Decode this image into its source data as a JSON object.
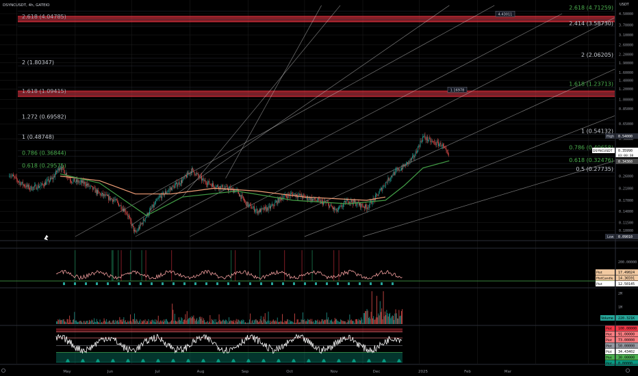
{
  "header": {
    "symbol_line": "DSYNCUSDT, 4h, GATEIO"
  },
  "price_axis": {
    "unit_label": "USDT",
    "ticks": [
      {
        "label": "4.50000",
        "v": 4.5
      },
      {
        "label": "3.70000",
        "v": 3.7
      },
      {
        "label": "3.10000",
        "v": 3.1
      },
      {
        "label": "2.60000",
        "v": 2.6
      },
      {
        "label": "2.20000",
        "v": 2.2
      },
      {
        "label": "1.90000",
        "v": 1.9
      },
      {
        "label": "1.60000",
        "v": 1.6
      },
      {
        "label": "1.40000",
        "v": 1.4
      },
      {
        "label": "1.20000",
        "v": 1.2
      },
      {
        "label": "1.00000",
        "v": 1.0
      },
      {
        "label": "0.85000",
        "v": 0.85
      },
      {
        "label": "0.65000",
        "v": 0.65
      },
      {
        "label": "0.50000",
        "v": 0.5
      },
      {
        "label": "0.26000",
        "v": 0.26
      },
      {
        "label": "0.21000",
        "v": 0.21
      },
      {
        "label": "0.17000",
        "v": 0.17
      },
      {
        "label": "0.14000",
        "v": 0.14
      },
      {
        "label": "0.11500",
        "v": 0.115
      },
      {
        "label": "0.10000",
        "v": 0.1
      }
    ],
    "high_label": "High",
    "high_value": "0.54000",
    "low_label": "Low",
    "low_value": "0.09010",
    "symbol_tag": "DSYNCUSDT",
    "last_price": "0.35990",
    "countdown": "03:00:38",
    "ma_value": "0.34360"
  },
  "fib_left": [
    {
      "text": "2.618 (4.04785)",
      "v": 4.04785,
      "color": "#a5a9b3"
    },
    {
      "text": "2 (1.80347)",
      "v": 1.80347,
      "color": "#c8ccd4"
    },
    {
      "text": "1.618 (1.09415)",
      "v": 1.09415,
      "color": "#a5a9b3"
    },
    {
      "text": "1.272 (0.69582)",
      "v": 0.69582,
      "color": "#c8ccd4"
    },
    {
      "text": "1 (0.48748)",
      "v": 0.48748,
      "color": "#c8ccd4"
    },
    {
      "text": "0.786 (0.36844)",
      "v": 0.36844,
      "color": "#4caf50"
    },
    {
      "text": "0.618 (0.29575)",
      "v": 0.29575,
      "color": "#4caf50"
    }
  ],
  "fib_right": [
    {
      "text": "2.618 (4.71259)",
      "v": 4.71259,
      "color": "#4caf50"
    },
    {
      "text": "2.414 (3.58730)",
      "v": 3.5873,
      "color": "#c8ccd4"
    },
    {
      "text": "2 (2.06205)",
      "v": 2.06205,
      "color": "#c8ccd4"
    },
    {
      "text": "1.618 (1.23713)",
      "v": 1.23713,
      "color": "#4caf50"
    },
    {
      "text": "1 (0.54132)",
      "v": 0.54132,
      "color": "#c8ccd4"
    },
    {
      "text": "0.786 (0.40658)",
      "v": 0.40658,
      "color": "#4caf50"
    },
    {
      "text": "0.618 (0.32476)",
      "v": 0.32476,
      "color": "#4caf50"
    },
    {
      "text": "0.5 (0.27735)",
      "v": 0.27735,
      "color": "#c8ccd4"
    }
  ],
  "zones": [
    {
      "from": 3.9,
      "to": 4.3
    },
    {
      "from": 1.05,
      "to": 1.16
    }
  ],
  "callouts": [
    {
      "text": "4.43011",
      "v": 4.43011
    },
    {
      "text": "1.16978",
      "v": 1.16978
    }
  ],
  "osc_axis": {
    "tick": "200.00000"
  },
  "osc_labels": [
    {
      "text": "17.49024",
      "color": "#f0c8a0",
      "prefix": "Plot"
    },
    {
      "text": "14.36591",
      "color": "#f0c8a0",
      "prefix": "PlotCandle"
    },
    {
      "text": "12.50145",
      "color": "#ffffff",
      "prefix": "Plot"
    }
  ],
  "volume_axis": {
    "ticks": [
      "2M",
      "1M"
    ],
    "label": "Volume",
    "value": "220.321K"
  },
  "rsi_labels": [
    {
      "prefix": "Plot",
      "text": "100.00000",
      "color": "#f23645"
    },
    {
      "prefix": "Plot",
      "text": "91.00000",
      "color": "#f77c80"
    },
    {
      "prefix": "Plot",
      "text": "73.00000",
      "color": "#f77c80"
    },
    {
      "prefix": "Plot",
      "text": "50.00000",
      "color": "#9598a1"
    },
    {
      "prefix": "Plot",
      "text": "34.43402",
      "color": "#ffffff"
    },
    {
      "prefix": "Plot",
      "text": "30.00000",
      "color": "#4caf50"
    },
    {
      "prefix": "Plot",
      "text": "0.00000",
      "color": "#089981"
    }
  ],
  "time_axis": [
    "May",
    "Jun",
    "Jul",
    "Aug",
    "Sep",
    "Oct",
    "Nov",
    "Dec",
    "2025",
    "Feb",
    "Mar"
  ],
  "colors": {
    "up": "#26a69a",
    "down": "#ef5350",
    "ema_fast": "#f6a27a",
    "ema_slow": "#43a047",
    "channel": "#d9d9d9",
    "zone": "#f23645",
    "grid": "#1b1b1b"
  },
  "chart_data": {
    "type": "candlestick",
    "symbol": "DSYNCUSDT",
    "timeframe": "4h",
    "exchange": "GATEIO",
    "y_scale": "log",
    "ylim": [
      0.085,
      5.2
    ],
    "x_range": [
      "2024-04-22",
      "2025-03-15"
    ],
    "close_path": [
      [
        "2024-04-27",
        0.27
      ],
      [
        "2024-05-03",
        0.23
      ],
      [
        "2024-05-08",
        0.21
      ],
      [
        "2024-05-14",
        0.22
      ],
      [
        "2024-05-20",
        0.25
      ],
      [
        "2024-05-24",
        0.31
      ],
      [
        "2024-05-30",
        0.24
      ],
      [
        "2024-06-06",
        0.23
      ],
      [
        "2024-06-14",
        0.19
      ],
      [
        "2024-06-22",
        0.17
      ],
      [
        "2024-06-28",
        0.14
      ],
      [
        "2024-07-03",
        0.095
      ],
      [
        "2024-07-09",
        0.13
      ],
      [
        "2024-07-16",
        0.18
      ],
      [
        "2024-07-22",
        0.21
      ],
      [
        "2024-07-28",
        0.24
      ],
      [
        "2024-08-02",
        0.29
      ],
      [
        "2024-08-08",
        0.24
      ],
      [
        "2024-08-14",
        0.22
      ],
      [
        "2024-08-20",
        0.21
      ],
      [
        "2024-08-26",
        0.2
      ],
      [
        "2024-08-31",
        0.16
      ],
      [
        "2024-09-06",
        0.14
      ],
      [
        "2024-09-13",
        0.15
      ],
      [
        "2024-09-19",
        0.18
      ],
      [
        "2024-09-25",
        0.19
      ],
      [
        "2024-10-01",
        0.18
      ],
      [
        "2024-10-07",
        0.17
      ],
      [
        "2024-10-13",
        0.16
      ],
      [
        "2024-10-18",
        0.14
      ],
      [
        "2024-10-24",
        0.17
      ],
      [
        "2024-10-29",
        0.16
      ],
      [
        "2024-11-03",
        0.15
      ],
      [
        "2024-11-08",
        0.18
      ],
      [
        "2024-11-13",
        0.23
      ],
      [
        "2024-11-17",
        0.27
      ],
      [
        "2024-11-23",
        0.31
      ],
      [
        "2024-11-28",
        0.36
      ],
      [
        "2024-12-03",
        0.52
      ],
      [
        "2024-12-08",
        0.47
      ],
      [
        "2024-12-13",
        0.45
      ],
      [
        "2024-12-17",
        0.36
      ]
    ],
    "ema_fast": [
      [
        "2024-05-24",
        0.26
      ],
      [
        "2024-06-14",
        0.24
      ],
      [
        "2024-07-03",
        0.19
      ],
      [
        "2024-07-22",
        0.19
      ],
      [
        "2024-08-14",
        0.21
      ],
      [
        "2024-09-06",
        0.2
      ],
      [
        "2024-10-01",
        0.18
      ],
      [
        "2024-11-03",
        0.17
      ],
      [
        "2024-11-13",
        0.18
      ]
    ],
    "ema_slow": [
      [
        "2024-05-24",
        0.27
      ],
      [
        "2024-06-14",
        0.23
      ],
      [
        "2024-07-09",
        0.13
      ],
      [
        "2024-07-28",
        0.18
      ],
      [
        "2024-08-26",
        0.2
      ],
      [
        "2024-09-25",
        0.17
      ],
      [
        "2024-10-24",
        0.16
      ],
      [
        "2024-11-13",
        0.17
      ],
      [
        "2024-11-23",
        0.22
      ],
      [
        "2024-12-03",
        0.3
      ],
      [
        "2024-12-17",
        0.34
      ]
    ],
    "channel_lines": [
      {
        "start": [
          "2024-07-03",
          0.09
        ],
        "end": [
          "2025-02-15",
          4.5
        ]
      },
      {
        "start": [
          "2024-08-01",
          0.09
        ],
        "end": [
          "2025-03-15",
          4.2
        ]
      },
      {
        "start": [
          "2024-09-01",
          0.09
        ],
        "end": [
          "2025-03-15",
          1.7
        ]
      },
      {
        "start": [
          "2024-10-01",
          0.09
        ],
        "end": [
          "2025-03-15",
          0.75
        ]
      },
      {
        "start": [
          "2024-11-01",
          0.09
        ],
        "end": [
          "2025-03-15",
          0.34
        ]
      },
      {
        "start": [
          "2024-06-01",
          0.09
        ],
        "end": [
          "2025-01-10",
          5.2
        ]
      },
      {
        "start": [
          "2024-07-01",
          0.11
        ],
        "end": [
          "2024-12-17",
          5.2
        ]
      },
      {
        "start": [
          "2024-07-28",
          0.18
        ],
        "end": [
          "2024-10-20",
          5.2
        ]
      },
      {
        "start": [
          "2024-08-20",
          0.25
        ],
        "end": [
          "2024-10-10",
          5.2
        ]
      }
    ],
    "rsi_levels": [
      100,
      91,
      73,
      50,
      30,
      0
    ],
    "last_rsi": 34.43402,
    "volume_unit": "USDT"
  }
}
